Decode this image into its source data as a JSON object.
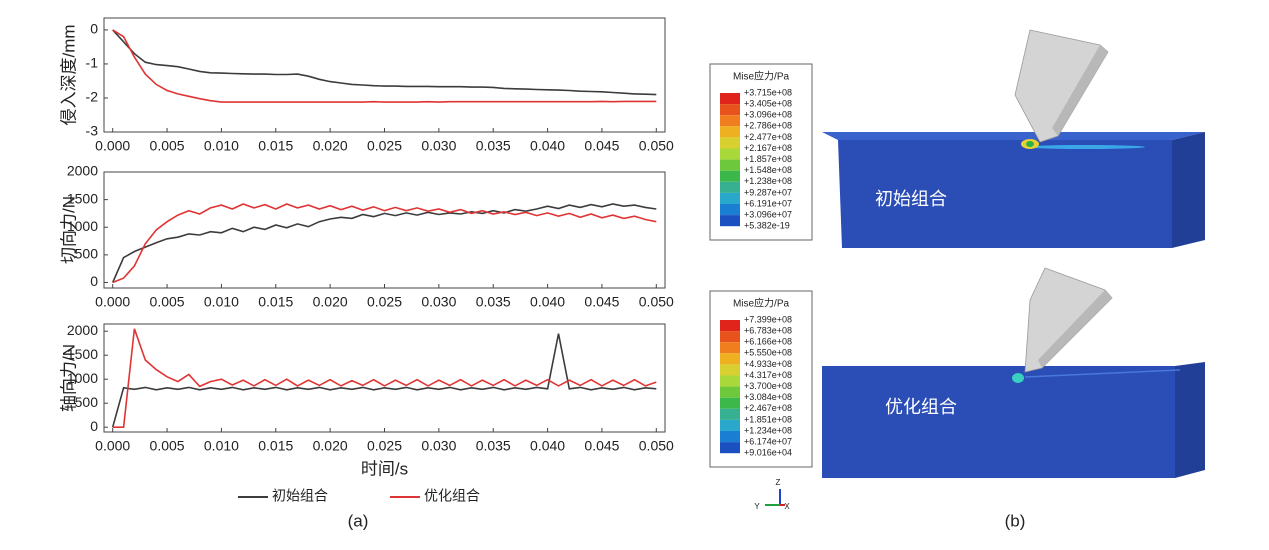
{
  "chart_data": [
    {
      "type": "line",
      "y_label": "侵入深度/mm",
      "x": [
        0,
        0.001,
        0.002,
        0.003,
        0.004,
        0.005,
        0.006,
        0.007,
        0.008,
        0.009,
        0.01,
        0.011,
        0.012,
        0.013,
        0.014,
        0.015,
        0.016,
        0.017,
        0.018,
        0.019,
        0.02,
        0.021,
        0.022,
        0.023,
        0.024,
        0.025,
        0.026,
        0.027,
        0.028,
        0.029,
        0.03,
        0.031,
        0.032,
        0.033,
        0.034,
        0.035,
        0.036,
        0.037,
        0.038,
        0.039,
        0.04,
        0.041,
        0.042,
        0.043,
        0.044,
        0.045,
        0.046,
        0.047,
        0.048,
        0.049,
        0.05
      ],
      "series": [
        {
          "color": "#3c3c3c",
          "values": [
            0,
            -0.35,
            -0.7,
            -0.95,
            -1.02,
            -1.05,
            -1.08,
            -1.15,
            -1.22,
            -1.26,
            -1.27,
            -1.28,
            -1.29,
            -1.3,
            -1.3,
            -1.31,
            -1.31,
            -1.3,
            -1.36,
            -1.45,
            -1.52,
            -1.56,
            -1.6,
            -1.62,
            -1.64,
            -1.65,
            -1.65,
            -1.66,
            -1.66,
            -1.66,
            -1.67,
            -1.67,
            -1.67,
            -1.68,
            -1.68,
            -1.69,
            -1.72,
            -1.73,
            -1.74,
            -1.75,
            -1.76,
            -1.77,
            -1.78,
            -1.8,
            -1.81,
            -1.82,
            -1.84,
            -1.86,
            -1.88,
            -1.89,
            -1.9
          ]
        },
        {
          "color": "#e03434",
          "values": [
            0,
            -0.2,
            -0.8,
            -1.3,
            -1.6,
            -1.78,
            -1.88,
            -1.95,
            -2.02,
            -2.08,
            -2.12,
            -2.12,
            -2.12,
            -2.12,
            -2.12,
            -2.12,
            -2.12,
            -2.12,
            -2.12,
            -2.12,
            -2.12,
            -2.12,
            -2.12,
            -2.12,
            -2.11,
            -2.12,
            -2.12,
            -2.12,
            -2.12,
            -2.11,
            -2.12,
            -2.11,
            -2.11,
            -2.11,
            -2.11,
            -2.11,
            -2.11,
            -2.11,
            -2.11,
            -2.11,
            -2.11,
            -2.11,
            -2.11,
            -2.11,
            -2.11,
            -2.1,
            -2.11,
            -2.1,
            -2.1,
            -2.1,
            -2.1
          ]
        }
      ],
      "xlim": [
        -0.0008,
        0.0508
      ],
      "ylim": [
        -3,
        0.35
      ],
      "xticks": [
        {
          "value": 0,
          "label": "0.000"
        },
        {
          "value": 0.005,
          "label": "0.005"
        },
        {
          "value": 0.01,
          "label": "0.010"
        },
        {
          "value": 0.015,
          "label": "0.015"
        },
        {
          "value": 0.02,
          "label": "0.020"
        },
        {
          "value": 0.025,
          "label": "0.025"
        },
        {
          "value": 0.03,
          "label": "0.030"
        },
        {
          "value": 0.035,
          "label": "0.035"
        },
        {
          "value": 0.04,
          "label": "0.040"
        },
        {
          "value": 0.045,
          "label": "0.045"
        },
        {
          "value": 0.05,
          "label": "0.050"
        }
      ],
      "yticks": [
        -3,
        -2,
        -1,
        0
      ]
    },
    {
      "type": "line",
      "y_label": "切向力/N",
      "x": [
        0,
        0.001,
        0.002,
        0.003,
        0.004,
        0.005,
        0.006,
        0.007,
        0.008,
        0.009,
        0.01,
        0.011,
        0.012,
        0.013,
        0.014,
        0.015,
        0.016,
        0.017,
        0.018,
        0.019,
        0.02,
        0.021,
        0.022,
        0.023,
        0.024,
        0.025,
        0.026,
        0.027,
        0.028,
        0.029,
        0.03,
        0.031,
        0.032,
        0.033,
        0.034,
        0.035,
        0.036,
        0.037,
        0.038,
        0.039,
        0.04,
        0.041,
        0.042,
        0.043,
        0.044,
        0.045,
        0.046,
        0.047,
        0.048,
        0.049,
        0.05
      ],
      "series": [
        {
          "color": "#3c3c3c",
          "values": [
            0,
            450,
            560,
            640,
            720,
            790,
            820,
            880,
            860,
            920,
            900,
            980,
            920,
            1000,
            960,
            1040,
            990,
            1060,
            1010,
            1100,
            1150,
            1180,
            1160,
            1230,
            1190,
            1250,
            1210,
            1260,
            1220,
            1270,
            1230,
            1260,
            1240,
            1280,
            1250,
            1300,
            1260,
            1320,
            1290,
            1330,
            1380,
            1340,
            1400,
            1360,
            1410,
            1370,
            1420,
            1380,
            1400,
            1360,
            1330
          ]
        },
        {
          "color": "#e03434",
          "values": [
            0,
            80,
            300,
            700,
            950,
            1100,
            1220,
            1300,
            1240,
            1350,
            1400,
            1330,
            1420,
            1350,
            1410,
            1330,
            1420,
            1350,
            1400,
            1330,
            1390,
            1320,
            1380,
            1310,
            1370,
            1300,
            1360,
            1300,
            1350,
            1290,
            1330,
            1270,
            1320,
            1250,
            1300,
            1240,
            1280,
            1230,
            1270,
            1210,
            1260,
            1200,
            1250,
            1180,
            1240,
            1170,
            1220,
            1160,
            1200,
            1140,
            1100
          ]
        }
      ],
      "xlim": [
        -0.0008,
        0.0508
      ],
      "ylim": [
        -100,
        2000
      ],
      "xticks": [
        {
          "value": 0,
          "label": "0.000"
        },
        {
          "value": 0.005,
          "label": "0.005"
        },
        {
          "value": 0.01,
          "label": "0.010"
        },
        {
          "value": 0.015,
          "label": "0.015"
        },
        {
          "value": 0.02,
          "label": "0.020"
        },
        {
          "value": 0.025,
          "label": "0.025"
        },
        {
          "value": 0.03,
          "label": "0.030"
        },
        {
          "value": 0.035,
          "label": "0.035"
        },
        {
          "value": 0.04,
          "label": "0.040"
        },
        {
          "value": 0.045,
          "label": "0.045"
        },
        {
          "value": 0.05,
          "label": "0.050"
        }
      ],
      "yticks": [
        0,
        500,
        1000,
        1500,
        2000
      ]
    },
    {
      "type": "line",
      "y_label": "轴向力/N",
      "x_label": "时间/s",
      "x": [
        0,
        0.001,
        0.002,
        0.003,
        0.004,
        0.005,
        0.006,
        0.007,
        0.008,
        0.009,
        0.01,
        0.011,
        0.012,
        0.013,
        0.014,
        0.015,
        0.016,
        0.017,
        0.018,
        0.019,
        0.02,
        0.021,
        0.022,
        0.023,
        0.024,
        0.025,
        0.026,
        0.027,
        0.028,
        0.029,
        0.03,
        0.031,
        0.032,
        0.033,
        0.034,
        0.035,
        0.036,
        0.037,
        0.038,
        0.039,
        0.04,
        0.041,
        0.042,
        0.043,
        0.044,
        0.045,
        0.046,
        0.047,
        0.048,
        0.049,
        0.05
      ],
      "series": [
        {
          "name": "初始组合",
          "color": "#3c3c3c",
          "values": [
            0,
            820,
            790,
            830,
            780,
            820,
            790,
            830,
            780,
            820,
            790,
            830,
            780,
            820,
            790,
            830,
            780,
            820,
            790,
            830,
            780,
            820,
            790,
            830,
            780,
            820,
            790,
            830,
            780,
            820,
            790,
            830,
            780,
            820,
            790,
            830,
            780,
            820,
            790,
            830,
            800,
            1950,
            800,
            830,
            780,
            820,
            790,
            830,
            780,
            820,
            800
          ]
        },
        {
          "name": "优化组合",
          "color": "#e03434",
          "values": [
            0,
            0,
            2050,
            1400,
            1200,
            1050,
            950,
            1100,
            850,
            950,
            1000,
            880,
            980,
            860,
            990,
            870,
            1000,
            860,
            980,
            870,
            990,
            860,
            970,
            870,
            990,
            860,
            980,
            870,
            990,
            860,
            980,
            870,
            990,
            860,
            980,
            870,
            990,
            860,
            980,
            870,
            990,
            860,
            980,
            870,
            990,
            860,
            980,
            870,
            990,
            860,
            940
          ]
        }
      ],
      "xlim": [
        -0.0008,
        0.0508
      ],
      "ylim": [
        -100,
        2150
      ],
      "xticks": [
        {
          "value": 0,
          "label": "0.000"
        },
        {
          "value": 0.005,
          "label": "0.005"
        },
        {
          "value": 0.01,
          "label": "0.010"
        },
        {
          "value": 0.015,
          "label": "0.015"
        },
        {
          "value": 0.02,
          "label": "0.020"
        },
        {
          "value": 0.025,
          "label": "0.025"
        },
        {
          "value": 0.03,
          "label": "0.030"
        },
        {
          "value": 0.035,
          "label": "0.035"
        },
        {
          "value": 0.04,
          "label": "0.040"
        },
        {
          "value": 0.045,
          "label": "0.045"
        },
        {
          "value": 0.05,
          "label": "0.050"
        }
      ],
      "yticks": [
        0,
        500,
        1000,
        1500,
        2000
      ]
    }
  ],
  "caption_a": "(a)",
  "panel_b": {
    "caption": "(b)",
    "views": [
      {
        "label": "初始组合",
        "legend_title": "Mise应力/Pa",
        "legend_values": [
          "+3.715e+08",
          "+3.405e+08",
          "+3.096e+08",
          "+2.786e+08",
          "+2.477e+08",
          "+2.167e+08",
          "+1.857e+08",
          "+1.548e+08",
          "+1.238e+08",
          "+9.287e+07",
          "+6.191e+07",
          "+3.096e+07",
          "+5.382e-19"
        ]
      },
      {
        "label": "优化组合",
        "legend_title": "Mise应力/Pa",
        "legend_values": [
          "+7.399e+08",
          "+6.783e+08",
          "+6.166e+08",
          "+5.550e+08",
          "+4.933e+08",
          "+4.317e+08",
          "+3.700e+08",
          "+3.084e+08",
          "+2.467e+08",
          "+1.851e+08",
          "+1.234e+08",
          "+6.174e+07",
          "+9.016e+04"
        ]
      }
    ],
    "triad": [
      "Z",
      "Y",
      "X"
    ]
  }
}
